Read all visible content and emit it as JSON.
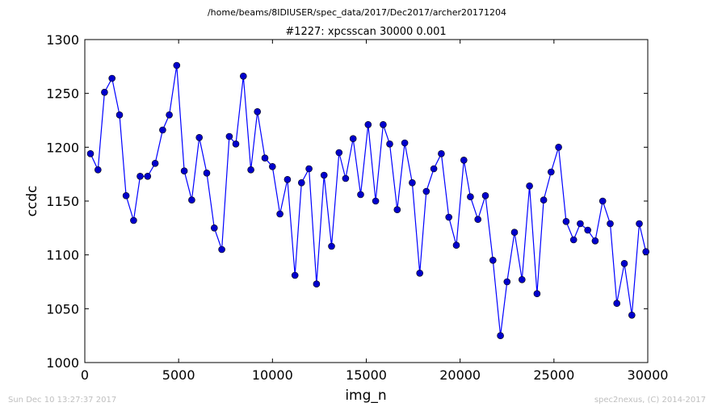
{
  "suptitle": "/home/beams/8IDIUSER/spec_data/2017/Dec2017/archer20171204",
  "footer_left": "Sun Dec 10 13:27:37 2017",
  "footer_right": "spec2nexus, (C) 2014-2017",
  "colors": {
    "series": "#0000ff",
    "marker_fill": "#0000cc",
    "axes": "#000000",
    "footer": "#bfbfbf"
  },
  "chart_data": {
    "type": "line",
    "title": "#1227: xpcsscan 30000 0.001",
    "xlabel": "img_n",
    "ylabel": "ccdc",
    "xlim": [
      0,
      30000
    ],
    "ylim": [
      1000,
      1300
    ],
    "xticks": [
      0,
      5000,
      10000,
      15000,
      20000,
      25000,
      30000
    ],
    "xtick_labels": [
      "0",
      "5000",
      "10000",
      "15000",
      "20000",
      "25000",
      "30000"
    ],
    "yticks": [
      1000,
      1050,
      1100,
      1150,
      1200,
      1250,
      1300
    ],
    "ytick_labels": [
      "1000",
      "1050",
      "1100",
      "1150",
      "1200",
      "1250",
      "1300"
    ],
    "grid": false,
    "series": [
      {
        "marker": "circle",
        "x": [
          300,
          700,
          1050,
          1450,
          1850,
          2200,
          2600,
          2950,
          3350,
          3750,
          4150,
          4500,
          4900,
          5300,
          5700,
          6100,
          6500,
          6900,
          7300,
          7700,
          8050,
          8450,
          8850,
          9200,
          9600,
          10000,
          10400,
          10800,
          11200,
          11550,
          11950,
          12350,
          12750,
          13150,
          13550,
          13900,
          14300,
          14700,
          15100,
          15500,
          15900,
          16250,
          16650,
          17050,
          17450,
          17850,
          18200,
          18600,
          19000,
          19400,
          19800,
          20200,
          20550,
          20950,
          21350,
          21750,
          22150,
          22500,
          22900,
          23300,
          23700,
          24100,
          24450,
          24850,
          25250,
          25650,
          26050,
          26400,
          26800,
          27200,
          27600,
          28000,
          28350,
          28750,
          29150,
          29550,
          29900
        ],
        "y": [
          1194,
          1179,
          1251,
          1264,
          1230,
          1155,
          1132,
          1173,
          1173,
          1185,
          1216,
          1230,
          1276,
          1178,
          1151,
          1209,
          1176,
          1125,
          1105,
          1210,
          1203,
          1266,
          1179,
          1233,
          1190,
          1182,
          1138,
          1170,
          1081,
          1167,
          1180,
          1073,
          1174,
          1108,
          1195,
          1171,
          1208,
          1156,
          1221,
          1150,
          1221,
          1203,
          1142,
          1204,
          1167,
          1083,
          1159,
          1180,
          1194,
          1135,
          1109,
          1188,
          1154,
          1133,
          1155,
          1095,
          1025,
          1075,
          1121,
          1077,
          1164,
          1064,
          1151,
          1177,
          1200,
          1131,
          1114,
          1129,
          1123,
          1113,
          1150,
          1129,
          1055,
          1092,
          1044,
          1129,
          1103
        ]
      }
    ]
  }
}
